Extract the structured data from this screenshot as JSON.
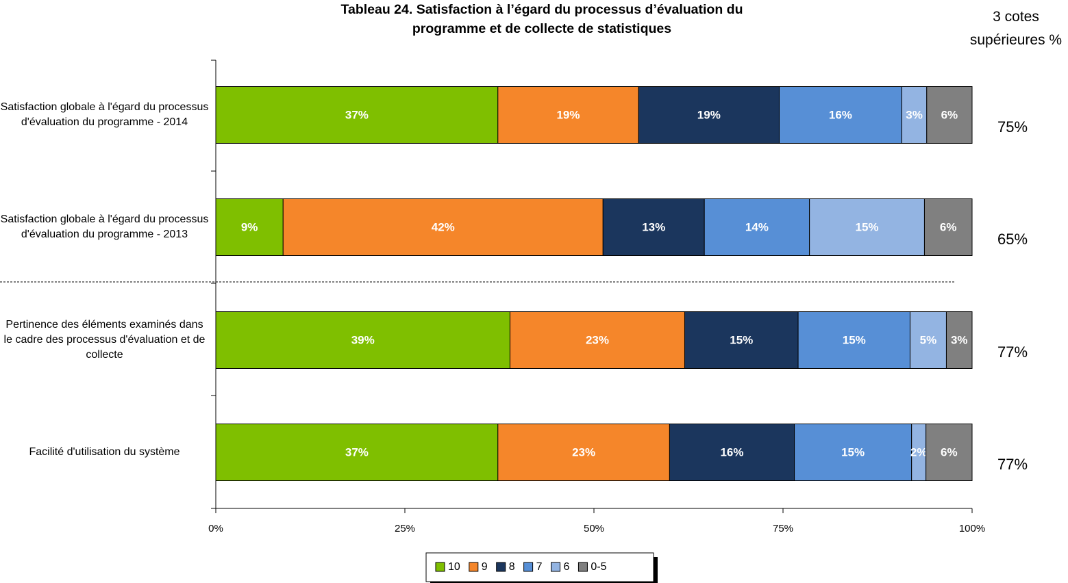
{
  "chart_data": {
    "type": "stacked-bar-horizontal",
    "title": "Tableau 24.  Satisfaction à l’égard du processus d’évaluation du programme et de collecte de statistiques",
    "categories": [
      "Satisfaction globale à l'égard du processus d'évaluation du programme - 2014",
      "Satisfaction globale à l'égard du processus d'évaluation du programme - 2013",
      "Pertinence des éléments examinés dans le cadre des processus d'évaluation et de collecte",
      "Facilité d'utilisation du système"
    ],
    "series": [
      {
        "name": "10",
        "color": "#7fbf00",
        "values": [
          37.3,
          8.9,
          38.9,
          37.3
        ],
        "value_labels": [
          "37%",
          "9%",
          "39%",
          "37%"
        ]
      },
      {
        "name": "9",
        "color": "#f5862a",
        "values": [
          18.6,
          42.3,
          23.1,
          22.7
        ],
        "value_labels": [
          "19%",
          "42%",
          "23%",
          "23%"
        ]
      },
      {
        "name": "8",
        "color": "#1b365d",
        "values": [
          18.6,
          13.4,
          15.0,
          16.5
        ],
        "value_labels": [
          "19%",
          "13%",
          "15%",
          "16%"
        ]
      },
      {
        "name": "7",
        "color": "#578fd6",
        "values": [
          16.2,
          13.9,
          14.8,
          15.5
        ],
        "value_labels": [
          "16%",
          "14%",
          "15%",
          "15%"
        ]
      },
      {
        "name": "6",
        "color": "#93b4e2",
        "values": [
          3.3,
          15.2,
          4.8,
          1.9
        ],
        "value_labels": [
          "3%",
          "15%",
          "5%",
          "2%"
        ]
      },
      {
        "name": "0-5",
        "color": "#808080",
        "values": [
          6.0,
          6.3,
          3.4,
          6.1
        ],
        "value_labels": [
          "6%",
          "6%",
          "3%",
          "6%"
        ]
      }
    ],
    "xlim": [
      0,
      100
    ],
    "xticks": [
      {
        "value": 0,
        "label": "0%"
      },
      {
        "value": 25,
        "label": "25%"
      },
      {
        "value": 50,
        "label": "50%"
      },
      {
        "value": 75,
        "label": "75%"
      },
      {
        "value": 100,
        "label": "100%"
      }
    ],
    "legend": "bottom",
    "top3": {
      "title": "3 cotes supérieures %",
      "values": [
        75,
        65,
        77,
        77
      ],
      "value_labels": [
        "75%",
        "65%",
        "77%",
        "77%"
      ]
    }
  }
}
